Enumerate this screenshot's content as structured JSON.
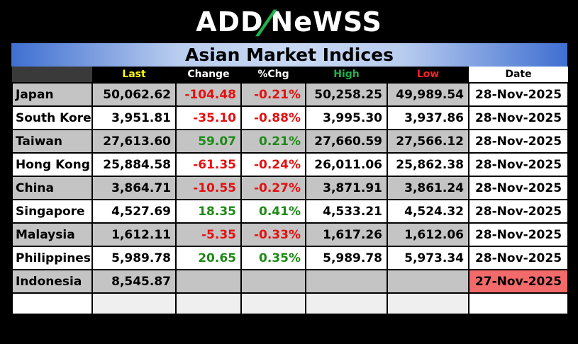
{
  "logo": {
    "part1": "ADD",
    "slash": "/",
    "n": "N",
    "part2": "eWSS"
  },
  "title": "Asian Market Indices",
  "headers": {
    "last": {
      "label": "Last",
      "color": "#ffff00"
    },
    "change": {
      "label": "Change",
      "color": "#ffffff"
    },
    "pchg": {
      "label": "%Chg",
      "color": "#ffffff"
    },
    "high": {
      "label": "High",
      "color": "#1fb24a"
    },
    "low": {
      "label": "Low",
      "color": "#ff2020"
    },
    "date": {
      "label": "Date",
      "color": "#000000"
    }
  },
  "rows": [
    {
      "name": "Japan",
      "last": "50,062.62",
      "change": "-104.48",
      "pchg": "-0.21%",
      "high": "50,258.25",
      "low": "49,989.54",
      "date": "28-Nov-2025",
      "dir": "neg"
    },
    {
      "name": "South Korea",
      "last": "3,951.81",
      "change": "-35.10",
      "pchg": "-0.88%",
      "high": "3,995.30",
      "low": "3,937.86",
      "date": "28-Nov-2025",
      "dir": "neg"
    },
    {
      "name": "Taiwan",
      "last": "27,613.60",
      "change": "59.07",
      "pchg": "0.21%",
      "high": "27,660.59",
      "low": "27,566.12",
      "date": "28-Nov-2025",
      "dir": "pos"
    },
    {
      "name": "Hong Kong",
      "last": "25,884.58",
      "change": "-61.35",
      "pchg": "-0.24%",
      "high": "26,011.06",
      "low": "25,862.38",
      "date": "28-Nov-2025",
      "dir": "neg"
    },
    {
      "name": "China",
      "last": "3,864.71",
      "change": "-10.55",
      "pchg": "-0.27%",
      "high": "3,871.91",
      "low": "3,861.24",
      "date": "28-Nov-2025",
      "dir": "neg"
    },
    {
      "name": "Singapore",
      "last": "4,527.69",
      "change": "18.35",
      "pchg": "0.41%",
      "high": "4,533.21",
      "low": "4,524.32",
      "date": "28-Nov-2025",
      "dir": "pos"
    },
    {
      "name": "Malaysia",
      "last": "1,612.11",
      "change": "-5.35",
      "pchg": "-0.33%",
      "high": "1,617.26",
      "low": "1,612.06",
      "date": "28-Nov-2025",
      "dir": "neg"
    },
    {
      "name": "Philippines",
      "last": "5,989.78",
      "change": "20.65",
      "pchg": "0.35%",
      "high": "5,989.78",
      "low": "5,973.34",
      "date": "28-Nov-2025",
      "dir": "pos"
    },
    {
      "name": "Indonesia",
      "last": "8,545.87",
      "change": "",
      "pchg": "",
      "high": "",
      "low": "",
      "date": "27-Nov-2025",
      "dir": "stale"
    }
  ],
  "colors": {
    "negative": "#e51010",
    "positive": "#1e8a16",
    "stale_date": "#f26a6a"
  }
}
